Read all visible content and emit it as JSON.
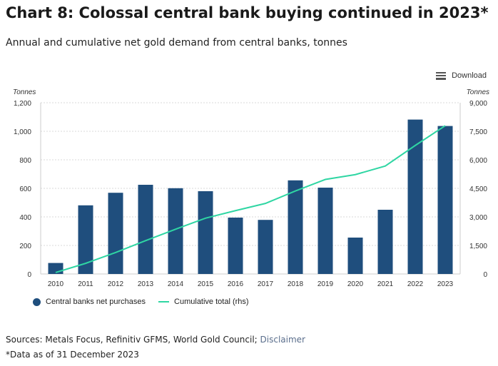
{
  "title": "Chart 8: Colossal central bank buying continued in 2023*",
  "subtitle": "Annual and cumulative net gold demand from central banks, tonnes",
  "download_label": "Download",
  "sources_text": "Sources: Metals Focus, Refinitiv GFMS, World Gold Council; ",
  "disclaimer_link": "Disclaimer",
  "note": "*Data as of 31 December 2023",
  "chart_data": {
    "type": "bar",
    "categories": [
      "2010",
      "2011",
      "2012",
      "2013",
      "2014",
      "2015",
      "2016",
      "2017",
      "2018",
      "2019",
      "2020",
      "2021",
      "2022",
      "2023"
    ],
    "series": [
      {
        "name": "Central banks net purchases",
        "type": "bar",
        "axis": "left",
        "color": "#1f4e7d",
        "values": [
          77,
          481,
          569,
          625,
          601,
          580,
          395,
          379,
          656,
          605,
          255,
          450,
          1082,
          1037
        ]
      },
      {
        "name": "Cumulative total (rhs)",
        "type": "line",
        "axis": "right",
        "color": "#2fd6a3",
        "values": [
          77,
          558,
          1127,
          1752,
          2353,
          2933,
          3328,
          3707,
          4363,
          4968,
          5223,
          5673,
          6755,
          7792
        ]
      }
    ],
    "ylabel": "Tonnes",
    "y2label": "Tonnes",
    "ylim": [
      0,
      1200
    ],
    "y2lim": [
      0,
      9000
    ],
    "yticks": [
      "0",
      "200",
      "400",
      "600",
      "800",
      "1,000",
      "1,200"
    ],
    "y2ticks": [
      "0",
      "1,500",
      "3,000",
      "4,500",
      "6,000",
      "7,500",
      "9,000"
    ],
    "grid": true,
    "legend": "bottom-left"
  }
}
